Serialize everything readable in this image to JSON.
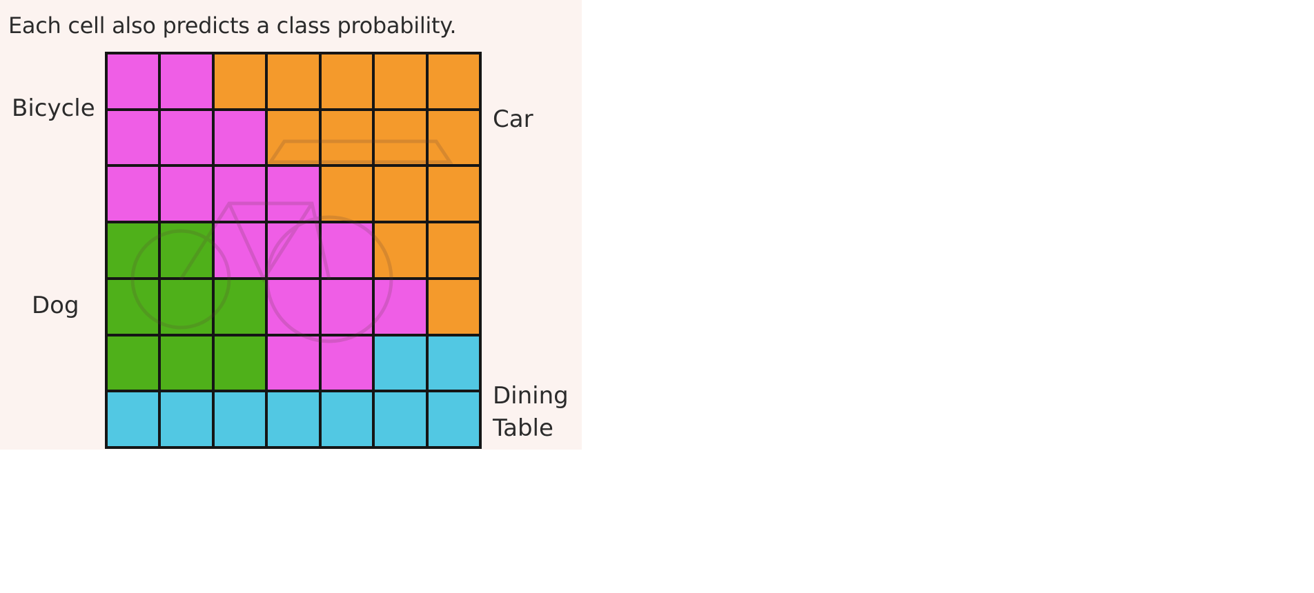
{
  "caption": "Each cell also predicts a class probability.",
  "labels": {
    "bicycle": "Bicycle",
    "car": "Car",
    "dog": "Dog",
    "dining": "Dining",
    "table": "Table"
  },
  "colors": {
    "bicycle": "#ef5ee6",
    "car": "#f49a2c",
    "dog": "#4fb01a",
    "table": "#52c8e3"
  },
  "grid": {
    "rows": [
      [
        "bicycle",
        "bicycle",
        "car",
        "car",
        "car",
        "car",
        "car"
      ],
      [
        "bicycle",
        "bicycle",
        "bicycle",
        "car",
        "car",
        "car",
        "car"
      ],
      [
        "bicycle",
        "bicycle",
        "bicycle",
        "bicycle",
        "car",
        "car",
        "car"
      ],
      [
        "dog",
        "dog",
        "bicycle",
        "bicycle",
        "bicycle",
        "car",
        "car"
      ],
      [
        "dog",
        "dog",
        "dog",
        "bicycle",
        "bicycle",
        "bicycle",
        "car"
      ],
      [
        "dog",
        "dog",
        "dog",
        "bicycle",
        "bicycle",
        "table",
        "table"
      ],
      [
        "table",
        "table",
        "table",
        "table",
        "table",
        "table",
        "table"
      ]
    ]
  }
}
